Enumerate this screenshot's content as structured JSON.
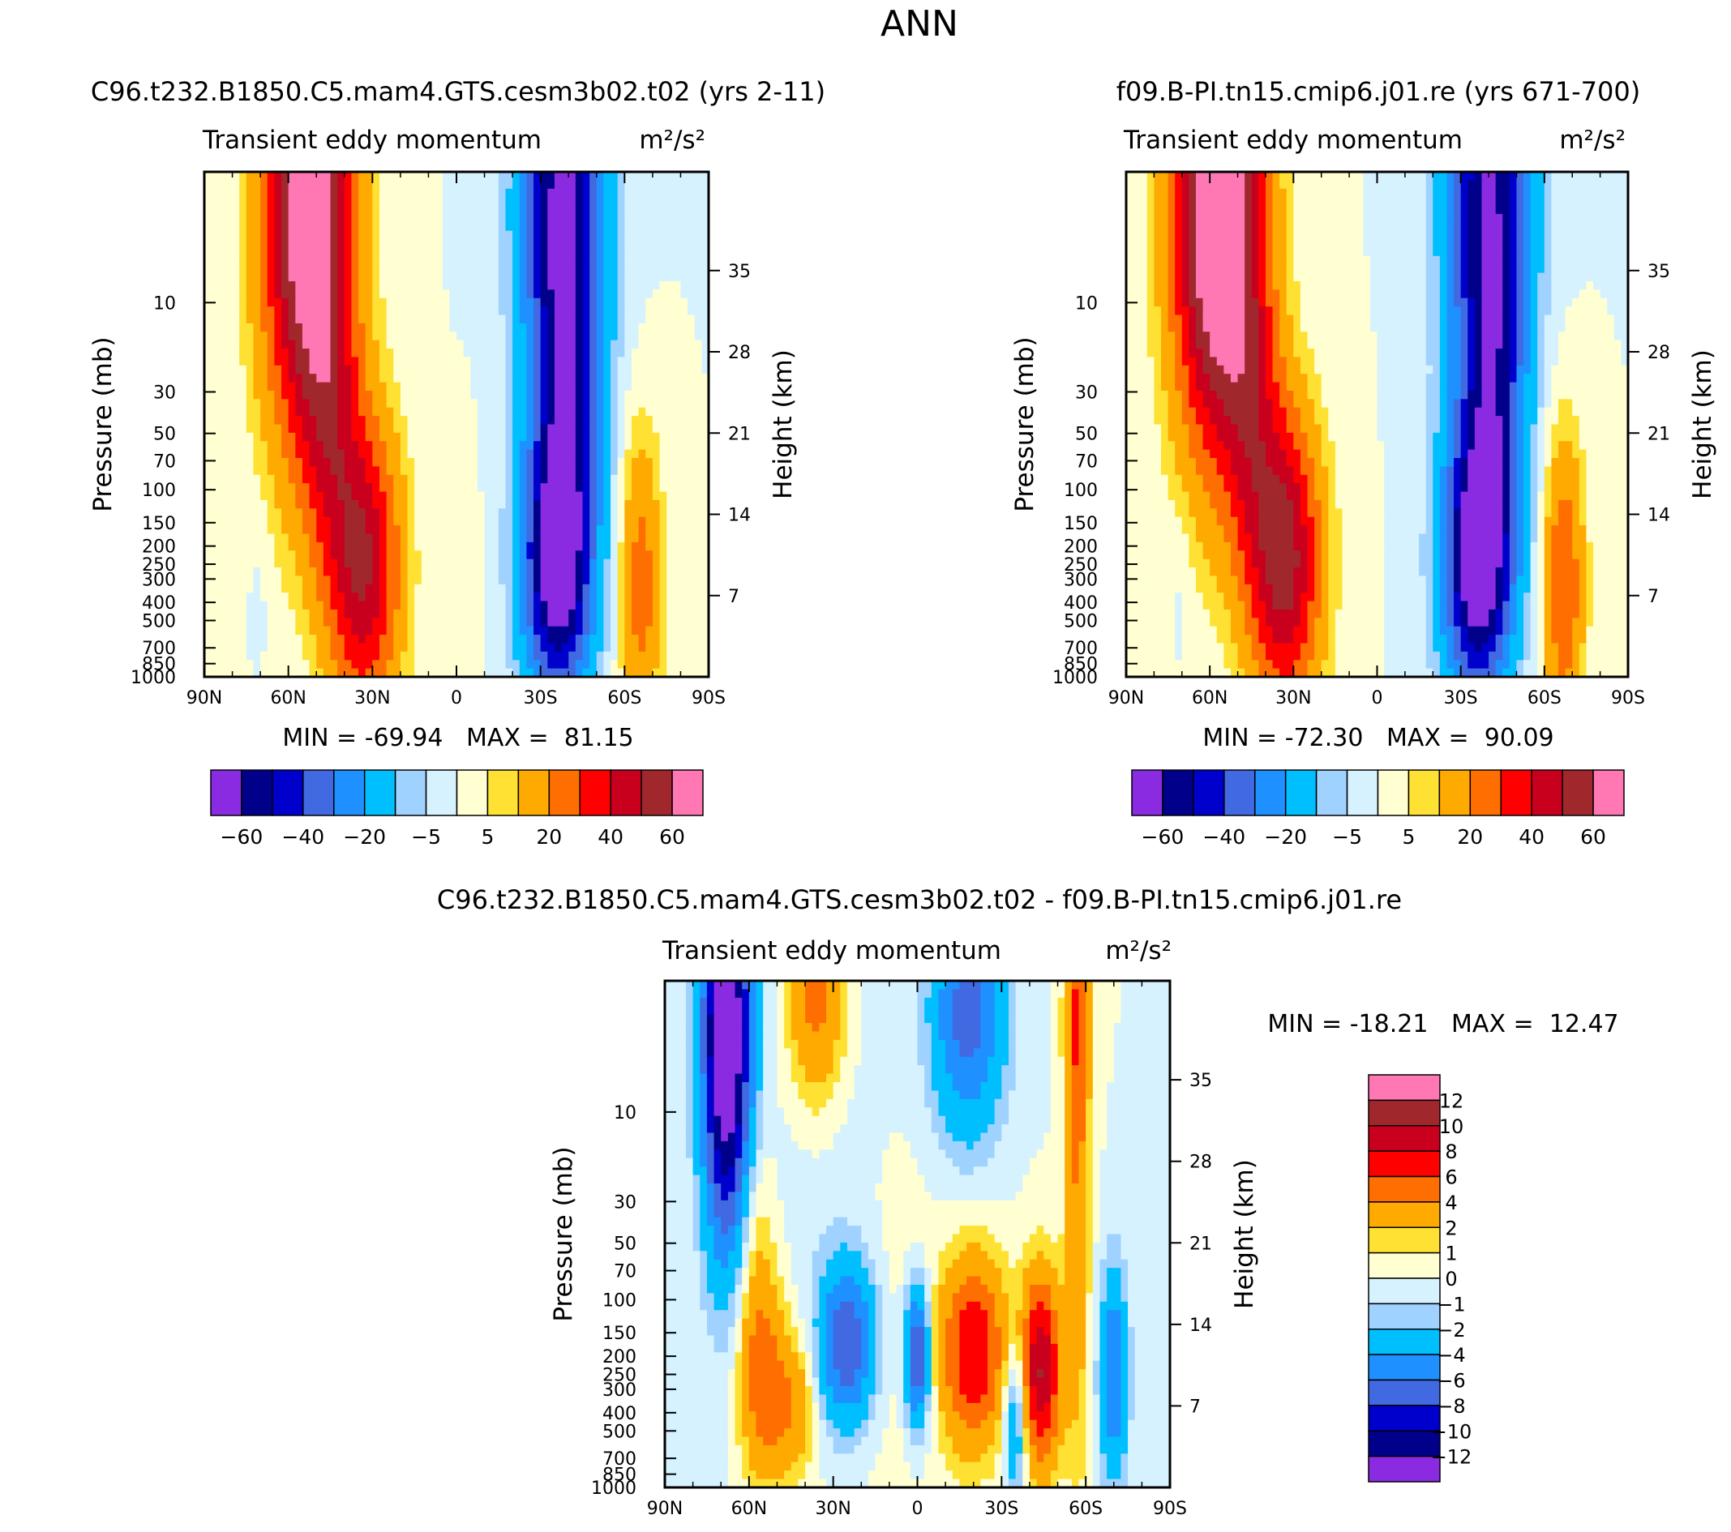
{
  "title": "ANN",
  "chart_data": [
    {
      "type": "contour",
      "panel": "case",
      "title": "C96.t232.B1850.C5.mam4.GTS.cesm3b02.t02 (yrs 2-11)",
      "left_label": "Transient eddy momentum",
      "units": "m²/s²",
      "xlabel": "",
      "ylabel": "Pressure (mb)",
      "ylabel_right": "Height (km)",
      "x_ticks": [
        "90N",
        "60N",
        "30N",
        "0",
        "30S",
        "60S",
        "90S"
      ],
      "y_ticks": [
        "10",
        "30",
        "50",
        "70",
        "100",
        "150",
        "200",
        "250",
        "300",
        "400",
        "500",
        "700",
        "850",
        "1000"
      ],
      "height_ticks": [
        "35",
        "28",
        "21",
        "14",
        "7"
      ],
      "stats": "MIN = -69.94   MAX =  81.15",
      "colorbar_labels": [
        "-60",
        "-40",
        "-20",
        "-5",
        "5",
        "20",
        "40",
        "60"
      ],
      "levels": [
        -70,
        -60,
        -50,
        -40,
        -30,
        -20,
        -10,
        -5,
        0,
        5,
        10,
        20,
        30,
        40,
        50,
        60,
        70
      ],
      "features": [
        {
          "lat": 53,
          "p": 3,
          "value": 75,
          "sx": 11,
          "sy": 0.9
        },
        {
          "lat": -38,
          "p": 3,
          "value": -64,
          "sx": 10,
          "sy": 0.9
        },
        {
          "lat": 33,
          "p": 260,
          "value": 50,
          "sx": 9,
          "sy": 0.55
        },
        {
          "lat": -36,
          "p": 260,
          "value": -68,
          "sx": 8.5,
          "sy": 0.5
        },
        {
          "lat": -66,
          "p": 320,
          "value": 25,
          "sx": 5,
          "sy": 0.55
        },
        {
          "lat": -3,
          "p": 250,
          "value": 5,
          "sx": 3,
          "sy": 0.4
        },
        {
          "lat": 45,
          "p": 40,
          "value": 22,
          "sx": 7,
          "sy": 0.6
        },
        {
          "lat": -40,
          "p": 40,
          "value": -22,
          "sx": 7,
          "sy": 0.6
        },
        {
          "lat": 70,
          "p": 300,
          "value": -2,
          "sx": 3,
          "sy": 0.3
        }
      ]
    },
    {
      "type": "contour",
      "panel": "control",
      "title": "f09.B-PI.tn15.cmip6.j01.re (yrs 671-700)",
      "left_label": "Transient eddy momentum",
      "units": "m²/s²",
      "xlabel": "",
      "ylabel": "Pressure (mb)",
      "ylabel_right": "Height (km)",
      "x_ticks": [
        "90N",
        "60N",
        "30N",
        "0",
        "30S",
        "60S",
        "90S"
      ],
      "y_ticks": [
        "10",
        "30",
        "50",
        "70",
        "100",
        "150",
        "200",
        "250",
        "300",
        "400",
        "500",
        "700",
        "850",
        "1000"
      ],
      "height_ticks": [
        "35",
        "28",
        "21",
        "14",
        "7"
      ],
      "stats": "MIN = -72.30   MAX =  90.09",
      "colorbar_labels": [
        "-60",
        "-40",
        "-20",
        "-5",
        "5",
        "20",
        "40",
        "60"
      ],
      "levels": [
        -70,
        -60,
        -50,
        -40,
        -30,
        -20,
        -10,
        -5,
        0,
        5,
        10,
        20,
        30,
        40,
        50,
        60,
        70
      ],
      "features": [
        {
          "lat": 57,
          "p": 3,
          "value": 85,
          "sx": 11,
          "sy": 0.9
        },
        {
          "lat": -40,
          "p": 3,
          "value": -60,
          "sx": 10,
          "sy": 0.9
        },
        {
          "lat": 33,
          "p": 240,
          "value": 55,
          "sx": 9,
          "sy": 0.55
        },
        {
          "lat": -36,
          "p": 250,
          "value": -70,
          "sx": 8.5,
          "sy": 0.5
        },
        {
          "lat": -67,
          "p": 320,
          "value": 30,
          "sx": 5,
          "sy": 0.55
        },
        {
          "lat": 45,
          "p": 40,
          "value": 24,
          "sx": 7,
          "sy": 0.6
        },
        {
          "lat": -42,
          "p": 40,
          "value": -22,
          "sx": 7,
          "sy": 0.6
        },
        {
          "lat": 70,
          "p": 300,
          "value": -3,
          "sx": 3,
          "sy": 0.3
        }
      ]
    },
    {
      "type": "contour",
      "panel": "difference",
      "title": "C96.t232.B1850.C5.mam4.GTS.cesm3b02.t02 - f09.B-PI.tn15.cmip6.j01.re",
      "left_label": "Transient eddy momentum",
      "units": "m²/s²",
      "xlabel": "",
      "ylabel": "Pressure (mb)",
      "ylabel_right": "Height (km)",
      "x_ticks": [
        "90N",
        "60N",
        "30N",
        "0",
        "30S",
        "60S",
        "90S"
      ],
      "y_ticks": [
        "10",
        "30",
        "50",
        "70",
        "100",
        "150",
        "200",
        "250",
        "300",
        "400",
        "500",
        "700",
        "850",
        "1000"
      ],
      "height_ticks": [
        "35",
        "28",
        "21",
        "14",
        "7"
      ],
      "stats": "MIN = -18.21   MAX =  12.47",
      "colorbar_labels": [
        "12",
        "10",
        "8",
        "6",
        "4",
        "2",
        "1",
        "0",
        "-1",
        "-2",
        "-4",
        "-6",
        "-8",
        "-10",
        "-12"
      ],
      "levels": [
        -14,
        -12,
        -10,
        -8,
        -6,
        -4,
        -2,
        -1,
        0,
        1,
        2,
        4,
        6,
        8,
        10,
        12,
        14
      ],
      "features": [
        {
          "lat": 68,
          "p": 4,
          "value": -16,
          "sx": 6,
          "sy": 0.75
        },
        {
          "lat": 36,
          "p": 2.5,
          "value": 5,
          "sx": 7,
          "sy": 0.4
        },
        {
          "lat": -18,
          "p": 3,
          "value": -7,
          "sx": 9,
          "sy": 0.45
        },
        {
          "lat": -57,
          "p": 12,
          "value": 4,
          "sx": 3,
          "sy": 1.2
        },
        {
          "lat": -57,
          "p": 3,
          "value": 3,
          "sx": 3,
          "sy": 0.4
        },
        {
          "lat": 58,
          "p": 70,
          "value": 2.5,
          "sx": 5,
          "sy": 0.5
        },
        {
          "lat": 54,
          "p": 300,
          "value": 5,
          "sx": 6,
          "sy": 0.35
        },
        {
          "lat": 43,
          "p": 380,
          "value": 3,
          "sx": 5,
          "sy": 0.25
        },
        {
          "lat": 25,
          "p": 170,
          "value": -8,
          "sx": 7,
          "sy": 0.3
        },
        {
          "lat": 0,
          "p": 200,
          "value": -9,
          "sx": 3,
          "sy": 0.25
        },
        {
          "lat": -20,
          "p": 190,
          "value": 8,
          "sx": 8,
          "sy": 0.35
        },
        {
          "lat": -44,
          "p": 240,
          "value": 10,
          "sx": 5,
          "sy": 0.35
        },
        {
          "lat": -35,
          "p": 420,
          "value": -5,
          "sx": 3,
          "sy": 0.3
        },
        {
          "lat": -70,
          "p": 250,
          "value": -6,
          "sx": 3.5,
          "sy": 0.4
        },
        {
          "lat": 10,
          "p": 60,
          "value": 0.8,
          "sx": 14,
          "sy": 0.9
        },
        {
          "lat": 25,
          "p": 15,
          "value": -0.8,
          "sx": 20,
          "sy": 0.8
        }
      ]
    }
  ],
  "colors": {
    "palette": [
      "#8a2be2",
      "#00008b",
      "#0000cd",
      "#4169e1",
      "#1e90ff",
      "#00bfff",
      "#a0d2ff",
      "#d6f2ff",
      "#ffffd2",
      "#ffe133",
      "#ffaa00",
      "#ff6e00",
      "#ff0000",
      "#c8001e",
      "#a0282d",
      "#ff78b4"
    ]
  }
}
